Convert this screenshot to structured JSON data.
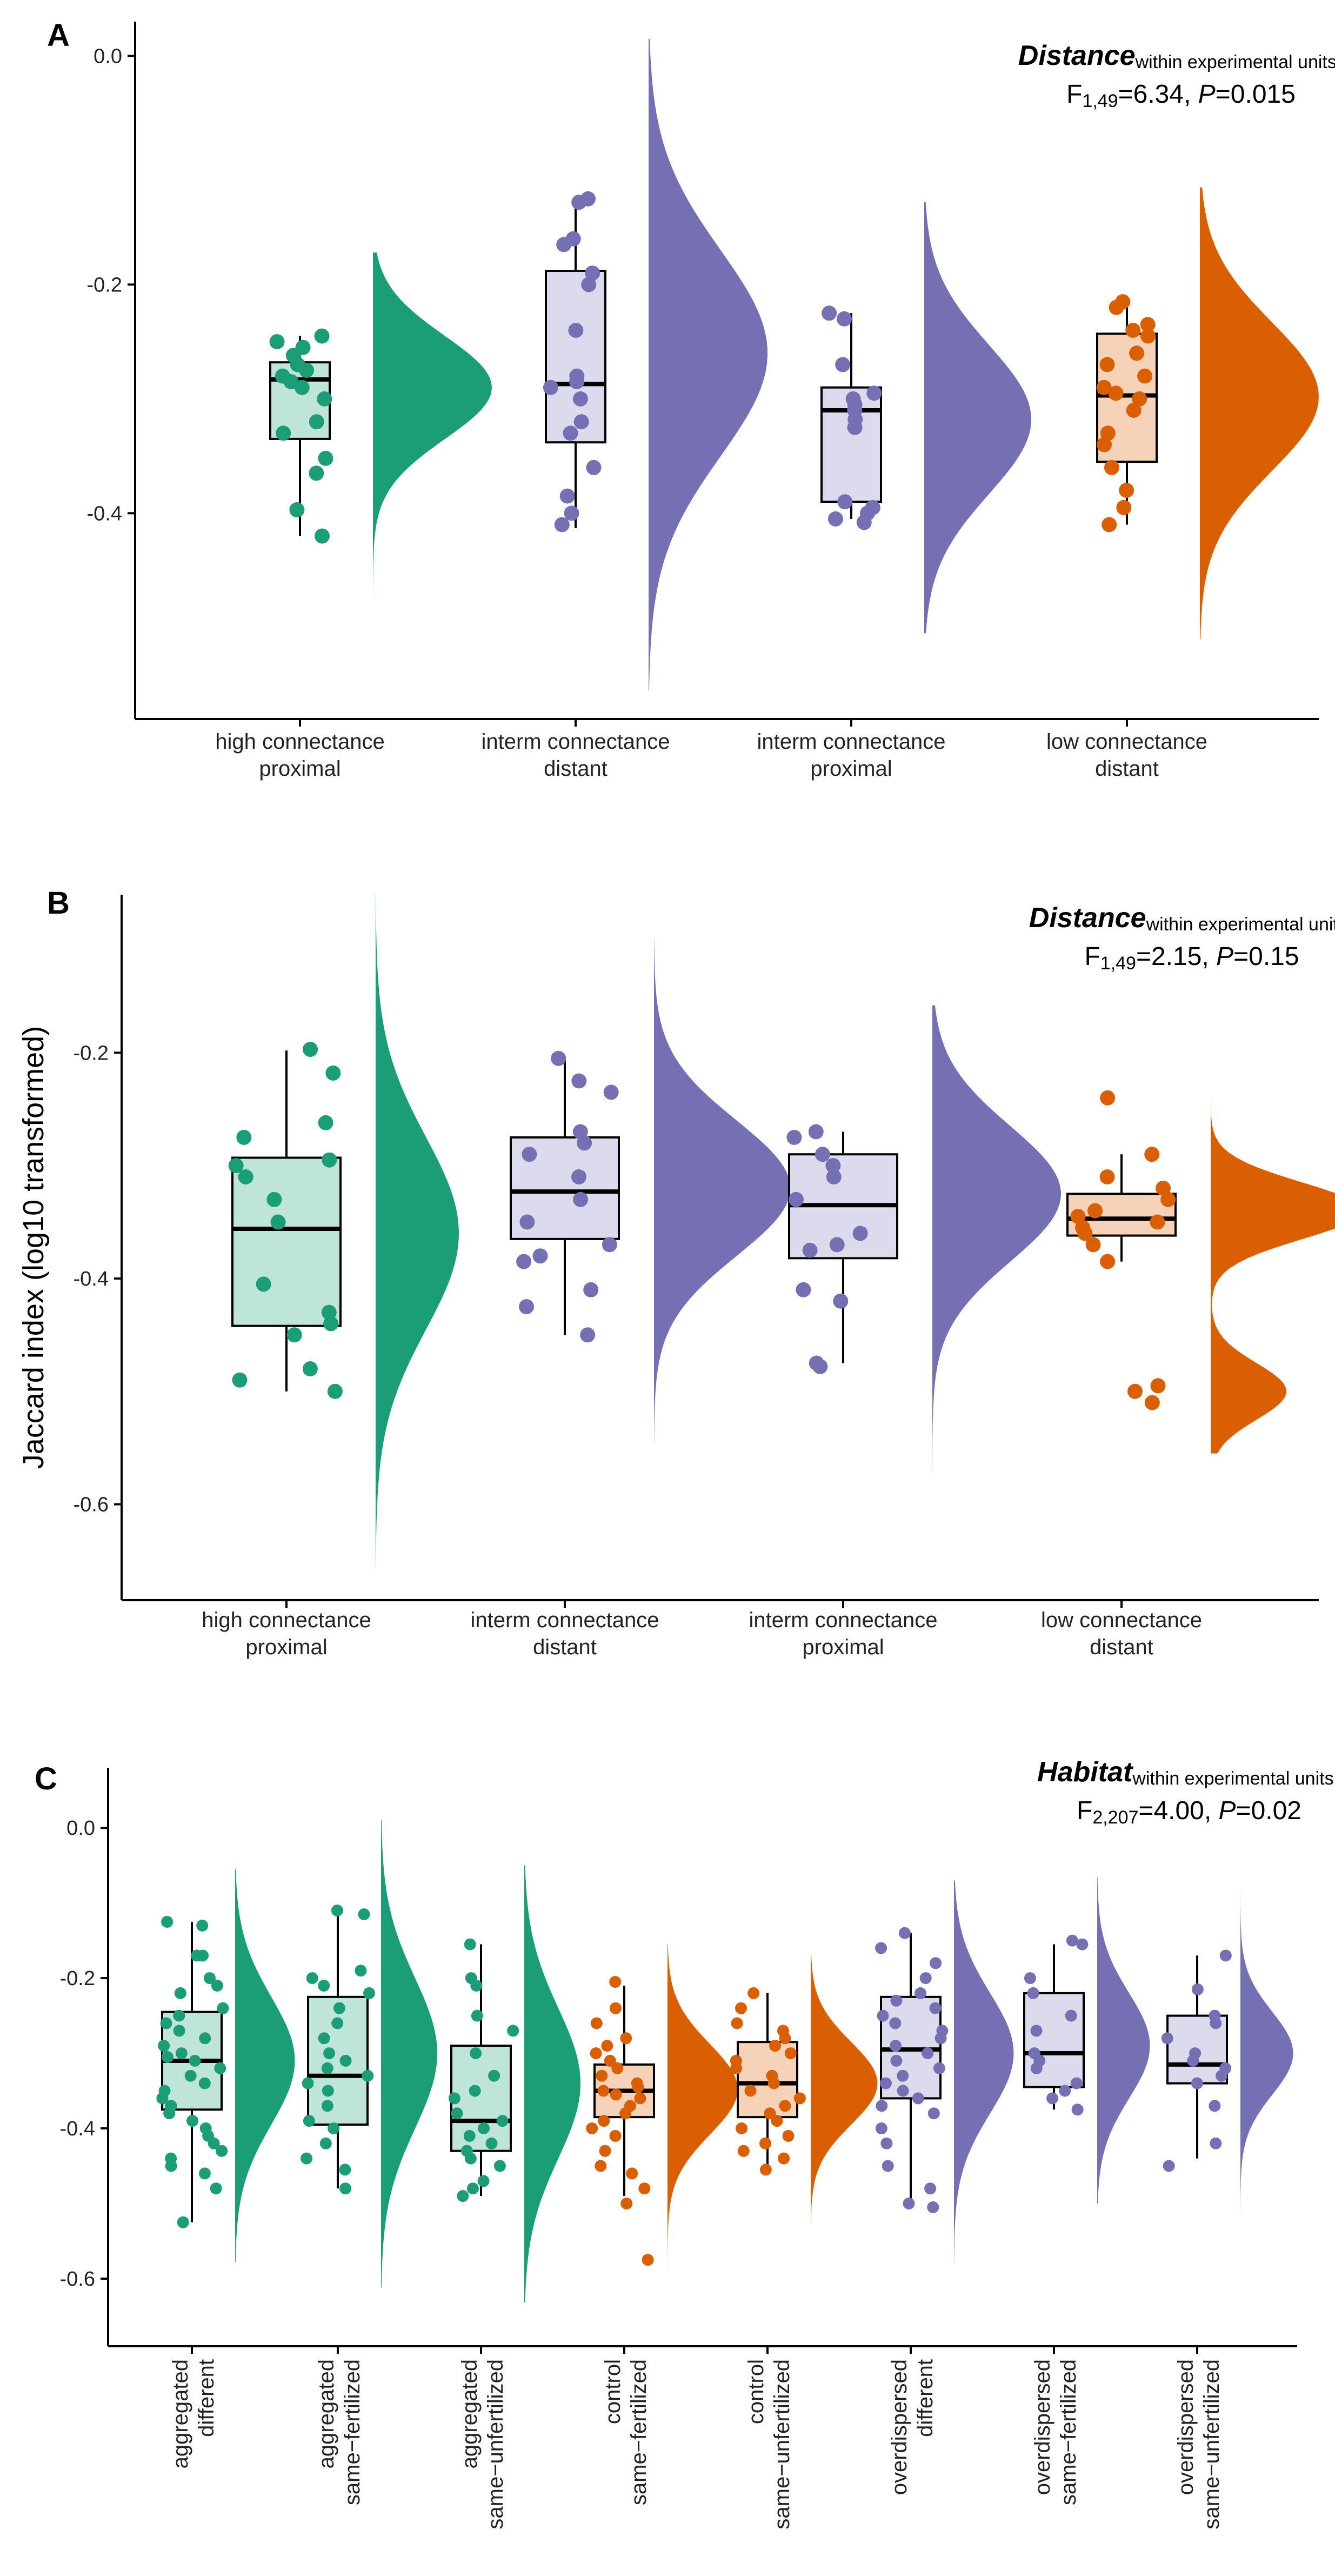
{
  "chart_data": [
    {
      "panel": "A",
      "type": "raincloud",
      "title": "",
      "annotation": {
        "factor": "Distance",
        "subscript": "within experimental units",
        "suffix": ":",
        "stat_F": "F",
        "stat_df": "1,49",
        "stat_value": "=6.34, ",
        "stat_P": "P",
        "stat_p": "=0.015"
      },
      "xlabel": "",
      "ylabel": "",
      "ylim": [
        -0.58,
        0.03
      ],
      "yticks": [
        0.0,
        -0.2,
        -0.4
      ],
      "ytick_labels": [
        "0.0",
        "-0.2",
        "-0.4"
      ],
      "groups": [
        {
          "label1": "high connectance",
          "label2": "proximal",
          "color": "#1b9e77",
          "box_fill": "#bfe5d8",
          "q1": -0.335,
          "median": -0.283,
          "q3": -0.268,
          "whisker_low": -0.42,
          "whisker_high": -0.245,
          "points": [
            -0.245,
            -0.25,
            -0.255,
            -0.262,
            -0.27,
            -0.275,
            -0.28,
            -0.285,
            -0.29,
            -0.3,
            -0.32,
            -0.33,
            -0.352,
            -0.365,
            -0.397,
            -0.42
          ],
          "density_mean": -0.29,
          "density_sd": 0.045,
          "density_range": [
            -0.495,
            -0.172
          ],
          "density_scale": 1.0
        },
        {
          "label1": "interm connectance",
          "label2": "distant",
          "color": "#7570b3",
          "box_fill": "#dcdbee",
          "q1": -0.338,
          "median": -0.287,
          "q3": -0.188,
          "whisker_low": -0.413,
          "whisker_high": -0.125,
          "points": [
            -0.125,
            -0.128,
            -0.16,
            -0.165,
            -0.19,
            -0.2,
            -0.24,
            -0.28,
            -0.285,
            -0.29,
            -0.3,
            -0.32,
            -0.33,
            -0.36,
            -0.385,
            -0.4,
            -0.41
          ],
          "density_mean": -0.26,
          "density_sd": 0.09,
          "density_range": [
            -0.555,
            0.015
          ],
          "density_scale": 1.0
        },
        {
          "label1": "interm connectance",
          "label2": "proximal",
          "color": "#7570b3",
          "box_fill": "#dcdbee",
          "q1": -0.39,
          "median": -0.31,
          "q3": -0.29,
          "whisker_low": -0.405,
          "whisker_high": -0.225,
          "points": [
            -0.225,
            -0.23,
            -0.27,
            -0.295,
            -0.3,
            -0.305,
            -0.31,
            -0.318,
            -0.325,
            -0.39,
            -0.395,
            -0.4,
            -0.405,
            -0.408
          ],
          "density_mean": -0.318,
          "density_sd": 0.065,
          "density_range": [
            -0.505,
            -0.128
          ],
          "density_scale": 0.9
        },
        {
          "label1": "low connectance",
          "label2": "distant",
          "color": "#d95f02",
          "box_fill": "#f6d2b8",
          "q1": -0.355,
          "median": -0.297,
          "q3": -0.243,
          "whisker_low": -0.41,
          "whisker_high": -0.218,
          "points": [
            -0.215,
            -0.22,
            -0.235,
            -0.24,
            -0.245,
            -0.26,
            -0.27,
            -0.28,
            -0.29,
            -0.295,
            -0.3,
            -0.31,
            -0.33,
            -0.34,
            -0.36,
            -0.38,
            -0.395,
            -0.41
          ],
          "density_mean": -0.298,
          "density_sd": 0.065,
          "density_range": [
            -0.51,
            -0.115
          ],
          "density_scale": 1.0
        }
      ]
    },
    {
      "panel": "B",
      "type": "raincloud",
      "title": "",
      "annotation": {
        "factor": "Distance",
        "subscript": "within experimental units",
        "suffix": ":",
        "stat_F": "F",
        "stat_df": "1,49",
        "stat_value": "=2.15, ",
        "stat_P": "P",
        "stat_p": "=0.15"
      },
      "xlabel": "",
      "ylabel": "Jaccard index (log10 transformed)",
      "ylim": [
        -0.685,
        -0.06
      ],
      "yticks": [
        -0.2,
        -0.4,
        -0.6
      ],
      "ytick_labels": [
        "-0.2",
        "-0.4",
        "-0.6"
      ],
      "groups": [
        {
          "label1": "high connectance",
          "label2": "proximal",
          "color": "#1b9e77",
          "box_fill": "#bfe5d8",
          "q1": -0.442,
          "median": -0.356,
          "q3": -0.293,
          "whisker_low": -0.5,
          "whisker_high": -0.198,
          "points": [
            -0.197,
            -0.218,
            -0.262,
            -0.275,
            -0.295,
            -0.3,
            -0.31,
            -0.33,
            -0.35,
            -0.405,
            -0.43,
            -0.44,
            -0.45,
            -0.48,
            -0.49,
            -0.5
          ],
          "density_mean": -0.36,
          "density_sd": 0.085,
          "density_range": [
            -0.655,
            -0.06
          ],
          "density_scale": 0.55
        },
        {
          "label1": "interm connectance",
          "label2": "distant",
          "color": "#7570b3",
          "box_fill": "#dcdbee",
          "q1": -0.365,
          "median": -0.323,
          "q3": -0.275,
          "whisker_low": -0.45,
          "whisker_high": -0.205,
          "points": [
            -0.205,
            -0.225,
            -0.235,
            -0.27,
            -0.28,
            -0.29,
            -0.31,
            -0.33,
            -0.35,
            -0.37,
            -0.38,
            -0.385,
            -0.41,
            -0.425,
            -0.45
          ],
          "density_mean": -0.32,
          "density_sd": 0.06,
          "density_range": [
            -0.545,
            -0.1
          ],
          "density_scale": 0.9
        },
        {
          "label1": "interm connectance",
          "label2": "proximal",
          "color": "#7570b3",
          "box_fill": "#dcdbee",
          "q1": -0.382,
          "median": -0.335,
          "q3": -0.29,
          "whisker_low": -0.475,
          "whisker_high": -0.27,
          "points": [
            -0.27,
            -0.275,
            -0.29,
            -0.3,
            -0.31,
            -0.33,
            -0.36,
            -0.37,
            -0.375,
            -0.41,
            -0.42,
            -0.475,
            -0.478
          ],
          "density_mean": -0.325,
          "density_sd": 0.06,
          "density_range": [
            -0.585,
            -0.158
          ],
          "density_scale": 0.85
        },
        {
          "label1": "low connectance",
          "label2": "distant",
          "color": "#d95f02",
          "box_fill": "#f6d2b8",
          "q1": -0.362,
          "median": -0.347,
          "q3": -0.325,
          "whisker_low": -0.385,
          "whisker_high": -0.29,
          "points": [
            -0.24,
            -0.29,
            -0.31,
            -0.32,
            -0.33,
            -0.34,
            -0.345,
            -0.35,
            -0.355,
            -0.36,
            -0.37,
            -0.385,
            -0.495,
            -0.5,
            -0.51
          ],
          "density_mean": -0.34,
          "density_sd": 0.025,
          "density_range": [
            -0.555,
            -0.2
          ],
          "density_scale": 1.0,
          "density_mean2": -0.5,
          "density_sd2": 0.025,
          "density_w2": 0.5
        }
      ]
    },
    {
      "panel": "C",
      "type": "raincloud",
      "title": "",
      "annotation": {
        "factor": "Habitat",
        "subscript": "within experimental units",
        "suffix": ":",
        "stat_F": "F",
        "stat_df": "2,207",
        "stat_value": "=4.00, ",
        "stat_P": "P",
        "stat_p": "=0.02"
      },
      "xlabel": "",
      "ylabel": "",
      "ylim": [
        -0.69,
        0.08
      ],
      "yticks": [
        0.0,
        -0.2,
        -0.4,
        -0.6
      ],
      "ytick_labels": [
        "0.0",
        "-0.2",
        "-0.4",
        "-0.6"
      ],
      "groups": [
        {
          "label1": "aggregated",
          "label2": "different",
          "color": "#1b9e77",
          "box_fill": "#bfe5d8",
          "q1": -0.375,
          "median": -0.31,
          "q3": -0.245,
          "whisker_low": -0.525,
          "whisker_high": -0.125,
          "points": [
            -0.125,
            -0.13,
            -0.17,
            -0.17,
            -0.2,
            -0.21,
            -0.22,
            -0.24,
            -0.25,
            -0.26,
            -0.27,
            -0.28,
            -0.29,
            -0.3,
            -0.305,
            -0.31,
            -0.32,
            -0.33,
            -0.34,
            -0.35,
            -0.36,
            -0.37,
            -0.38,
            -0.39,
            -0.4,
            -0.41,
            -0.42,
            -0.43,
            -0.44,
            -0.45,
            -0.46,
            -0.48,
            -0.525
          ],
          "density_mean": -0.31,
          "density_sd": 0.085,
          "density_range": [
            -0.578,
            -0.055
          ],
          "density_scale": 0.85
        },
        {
          "label1": "aggregated",
          "label2": "same−fertilized",
          "color": "#1b9e77",
          "box_fill": "#bfe5d8",
          "q1": -0.395,
          "median": -0.33,
          "q3": -0.225,
          "whisker_low": -0.48,
          "whisker_high": -0.115,
          "points": [
            -0.11,
            -0.115,
            -0.19,
            -0.2,
            -0.21,
            -0.22,
            -0.24,
            -0.26,
            -0.28,
            -0.3,
            -0.31,
            -0.32,
            -0.33,
            -0.34,
            -0.35,
            -0.37,
            -0.39,
            -0.4,
            -0.42,
            -0.44,
            -0.455,
            -0.48
          ],
          "density_mean": -0.3,
          "density_sd": 0.1,
          "density_range": [
            -0.612,
            0.01
          ],
          "density_scale": 0.8
        },
        {
          "label1": "aggregated",
          "label2": "same−unfertilized",
          "color": "#1b9e77",
          "box_fill": "#bfe5d8",
          "q1": -0.43,
          "median": -0.39,
          "q3": -0.29,
          "whisker_low": -0.49,
          "whisker_high": -0.155,
          "points": [
            -0.155,
            -0.2,
            -0.21,
            -0.25,
            -0.27,
            -0.3,
            -0.33,
            -0.35,
            -0.36,
            -0.38,
            -0.39,
            -0.4,
            -0.41,
            -0.42,
            -0.43,
            -0.44,
            -0.45,
            -0.47,
            -0.48,
            -0.49
          ],
          "density_mean": -0.34,
          "density_sd": 0.1,
          "density_range": [
            -0.632,
            -0.05
          ],
          "density_scale": 0.8
        },
        {
          "label1": "control",
          "label2": "same−fertilized",
          "color": "#d95f02",
          "box_fill": "#f6d2b8",
          "q1": -0.385,
          "median": -0.35,
          "q3": -0.315,
          "whisker_low": -0.49,
          "whisker_high": -0.21,
          "points": [
            -0.205,
            -0.24,
            -0.26,
            -0.28,
            -0.29,
            -0.3,
            -0.31,
            -0.32,
            -0.33,
            -0.34,
            -0.345,
            -0.35,
            -0.355,
            -0.36,
            -0.37,
            -0.38,
            -0.39,
            -0.4,
            -0.41,
            -0.43,
            -0.45,
            -0.46,
            -0.48,
            -0.5,
            -0.575
          ],
          "density_mean": -0.348,
          "density_sd": 0.06,
          "density_range": [
            -0.595,
            -0.155
          ],
          "density_scale": 1.0
        },
        {
          "label1": "control",
          "label2": "same−unfertilized",
          "color": "#d95f02",
          "box_fill": "#f6d2b8",
          "q1": -0.385,
          "median": -0.34,
          "q3": -0.285,
          "whisker_low": -0.455,
          "whisker_high": -0.22,
          "points": [
            -0.22,
            -0.24,
            -0.26,
            -0.27,
            -0.28,
            -0.29,
            -0.3,
            -0.31,
            -0.32,
            -0.33,
            -0.34,
            -0.35,
            -0.36,
            -0.37,
            -0.38,
            -0.39,
            -0.4,
            -0.41,
            -0.42,
            -0.43,
            -0.44,
            -0.455
          ],
          "density_mean": -0.34,
          "density_sd": 0.055,
          "density_range": [
            -0.525,
            -0.17
          ],
          "density_scale": 0.95
        },
        {
          "label1": "overdispersed",
          "label2": "different",
          "color": "#7570b3",
          "box_fill": "#dcdbee",
          "q1": -0.36,
          "median": -0.295,
          "q3": -0.225,
          "whisker_low": -0.5,
          "whisker_high": -0.14,
          "points": [
            -0.14,
            -0.16,
            -0.18,
            -0.2,
            -0.22,
            -0.23,
            -0.24,
            -0.25,
            -0.26,
            -0.27,
            -0.28,
            -0.29,
            -0.3,
            -0.31,
            -0.32,
            -0.33,
            -0.34,
            -0.35,
            -0.36,
            -0.37,
            -0.38,
            -0.4,
            -0.42,
            -0.45,
            -0.48,
            -0.5,
            -0.505
          ],
          "density_mean": -0.3,
          "density_sd": 0.08,
          "density_range": [
            -0.58,
            -0.07
          ],
          "density_scale": 0.85
        },
        {
          "label1": "overdispersed",
          "label2": "same−fertilized",
          "color": "#7570b3",
          "box_fill": "#dcdbee",
          "q1": -0.345,
          "median": -0.3,
          "q3": -0.22,
          "whisker_low": -0.375,
          "whisker_high": -0.155,
          "points": [
            -0.15,
            -0.155,
            -0.2,
            -0.22,
            -0.25,
            -0.27,
            -0.3,
            -0.31,
            -0.32,
            -0.34,
            -0.35,
            -0.36,
            -0.375
          ],
          "density_mean": -0.29,
          "density_sd": 0.07,
          "density_range": [
            -0.5,
            -0.065
          ],
          "density_scale": 0.75
        },
        {
          "label1": "overdispersed",
          "label2": "same−unfertilized",
          "color": "#7570b3",
          "box_fill": "#dcdbee",
          "q1": -0.34,
          "median": -0.315,
          "q3": -0.25,
          "whisker_low": -0.44,
          "whisker_high": -0.17,
          "points": [
            -0.17,
            -0.215,
            -0.25,
            -0.26,
            -0.28,
            -0.3,
            -0.31,
            -0.32,
            -0.33,
            -0.34,
            -0.37,
            -0.42,
            -0.45
          ],
          "density_mean": -0.3,
          "density_sd": 0.055,
          "density_range": [
            -0.545,
            -0.072
          ],
          "density_scale": 0.75
        }
      ]
    }
  ]
}
